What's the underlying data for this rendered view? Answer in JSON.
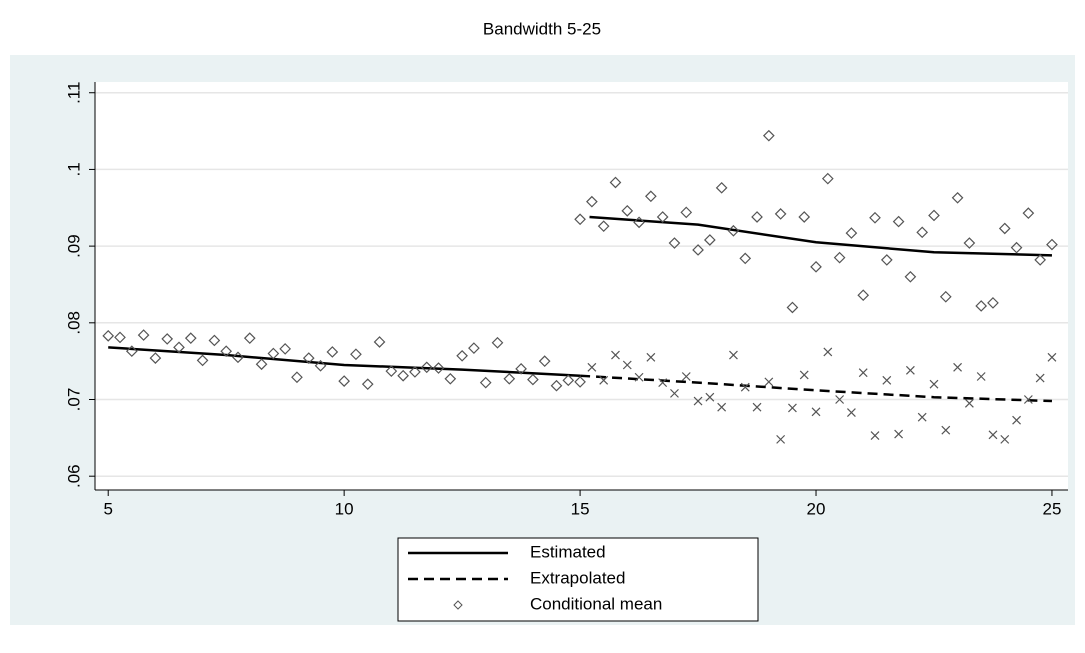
{
  "chart_data": {
    "type": "line",
    "title": "Bandwidth 5-25",
    "xlim": [
      4.72,
      25.34
    ],
    "ylim": [
      0.0582,
      0.1114
    ],
    "xticks": [
      5,
      10,
      15,
      20,
      25
    ],
    "yticks": [
      {
        "value": 0.06,
        "label": ".06"
      },
      {
        "value": 0.07,
        "label": ".07"
      },
      {
        "value": 0.08,
        "label": ".08"
      },
      {
        "value": 0.09,
        "label": ".09"
      },
      {
        "value": 0.1,
        "label": ".1"
      },
      {
        "value": 0.11,
        "label": ".11"
      }
    ],
    "grid": true,
    "series": [
      {
        "name": "Estimated",
        "color": "#000000",
        "style": "solid",
        "x": [
          5,
          7.5,
          10,
          12.5,
          15,
          15.1,
          15.2,
          17.5,
          20,
          22.5,
          25
        ],
        "values": [
          0.0768,
          0.0758,
          0.0745,
          0.0739,
          0.0731,
          null,
          0.0938,
          0.0928,
          0.0905,
          0.0892,
          0.0888
        ]
      },
      {
        "name": "Extrapolated",
        "color": "#000000",
        "style": "dashed",
        "x": [
          15,
          17.5,
          20,
          22.5,
          25
        ],
        "values": [
          0.0731,
          0.0722,
          0.0712,
          0.0703,
          0.0698
        ]
      },
      {
        "name": "Conditional mean",
        "color": "#555555",
        "style": "diamond",
        "x": [
          5,
          5.25,
          5.5,
          5.75,
          6,
          6.25,
          6.5,
          6.75,
          7,
          7.25,
          7.5,
          7.75,
          8,
          8.25,
          8.5,
          8.75,
          9,
          9.25,
          9.5,
          9.75,
          10,
          10.25,
          10.5,
          10.75,
          11,
          11.25,
          11.5,
          11.75,
          12,
          12.25,
          12.5,
          12.75,
          13,
          13.25,
          13.5,
          13.75,
          14,
          14.25,
          14.5,
          14.75,
          15,
          15,
          15.25,
          15.5,
          15.75,
          16,
          16.25,
          16.5,
          16.75,
          17,
          17.25,
          17.5,
          17.75,
          18,
          18.25,
          18.5,
          18.75,
          19,
          19.25,
          19.5,
          19.75,
          20,
          20.25,
          20.5,
          20.75,
          21,
          21.25,
          21.5,
          21.75,
          22,
          22.25,
          22.5,
          22.75,
          23,
          23.25,
          23.5,
          23.75,
          24,
          24.25,
          24.5,
          24.75,
          25
        ],
        "values": [
          0.0783,
          0.0781,
          0.0763,
          0.0784,
          0.0754,
          0.0779,
          0.0768,
          0.078,
          0.0751,
          0.0777,
          0.0763,
          0.0755,
          0.078,
          0.0746,
          0.076,
          0.0766,
          0.0729,
          0.0754,
          0.0744,
          0.0762,
          0.0724,
          0.0759,
          0.072,
          0.0775,
          0.0737,
          0.0731,
          0.0736,
          0.0742,
          0.0741,
          0.0727,
          0.0757,
          0.0767,
          0.0722,
          0.0774,
          0.0727,
          0.074,
          0.0726,
          0.075,
          0.0718,
          0.0725,
          0.0723,
          0.0935,
          0.0958,
          0.0926,
          0.0983,
          0.0946,
          0.0931,
          0.0965,
          0.0938,
          0.0904,
          0.0944,
          0.0895,
          0.0908,
          0.0976,
          0.092,
          0.0884,
          0.0938,
          0.1044,
          0.0942,
          0.082,
          0.0938,
          0.0873,
          0.0988,
          0.0885,
          0.0917,
          0.0836,
          0.0937,
          0.0882,
          0.0932,
          0.086,
          0.0918,
          0.094,
          0.0834,
          0.0963,
          0.0904,
          0.0822,
          0.0826,
          0.0923,
          0.0898,
          0.0943,
          0.0882,
          0.0902
        ]
      },
      {
        "color": "#555555",
        "style": "x",
        "x": [
          15.25,
          15.5,
          15.75,
          16,
          16.25,
          16.5,
          16.75,
          17,
          17.25,
          17.5,
          17.75,
          18,
          18.25,
          18.5,
          18.75,
          19,
          19.25,
          19.5,
          19.75,
          20,
          20.25,
          20.5,
          20.75,
          21,
          21.25,
          21.5,
          21.75,
          22,
          22.25,
          22.5,
          22.75,
          23,
          23.25,
          23.5,
          23.75,
          24,
          24.25,
          24.5,
          24.75,
          25
        ],
        "values": [
          0.0742,
          0.0725,
          0.0758,
          0.0745,
          0.0729,
          0.0755,
          0.0722,
          0.0708,
          0.073,
          0.0698,
          0.0703,
          0.069,
          0.0758,
          0.0716,
          0.069,
          0.0723,
          0.0648,
          0.0689,
          0.0732,
          0.0684,
          0.0762,
          0.07,
          0.0683,
          0.0735,
          0.0653,
          0.0725,
          0.0655,
          0.0738,
          0.0677,
          0.072,
          0.066,
          0.0742,
          0.0695,
          0.073,
          0.0654,
          0.0648,
          0.0673,
          0.07,
          0.0728,
          0.0755
        ]
      }
    ]
  }
}
